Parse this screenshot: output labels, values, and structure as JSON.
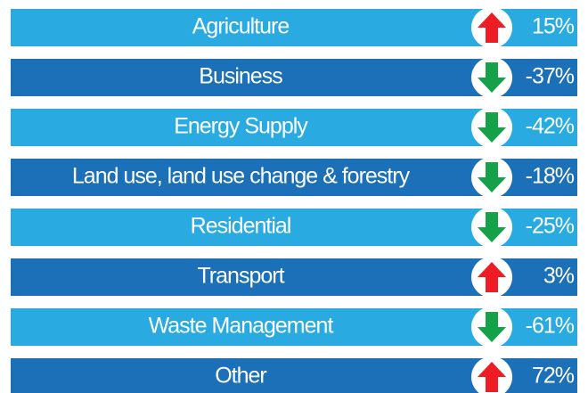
{
  "chart_data": {
    "type": "indicator-list",
    "categories": [
      "Agriculture",
      "Business",
      "Energy Supply",
      "Land use, land use change & forestry",
      "Residential",
      "Transport",
      "Waste Management",
      "Other"
    ],
    "values": [
      15,
      -37,
      -42,
      -18,
      -25,
      3,
      -61,
      72
    ],
    "value_labels": [
      "15%",
      "-37%",
      "-42%",
      "-18%",
      "-25%",
      "3%",
      "-61%",
      "72%"
    ],
    "row_colors": [
      "#29abe2",
      "#1c70b7"
    ],
    "up_color": "#ee1c24",
    "down_color": "#15a14a"
  }
}
